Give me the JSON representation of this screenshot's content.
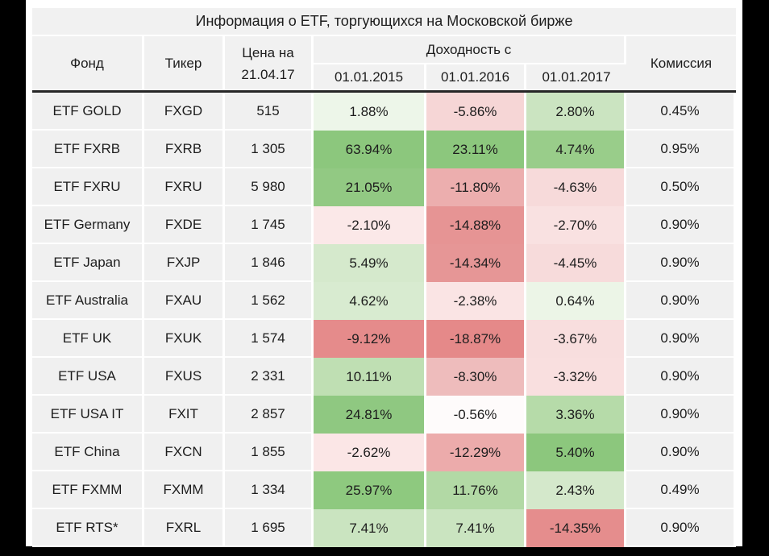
{
  "colors": {
    "frame": "#000000",
    "cell_gray": "#f0f0f0",
    "header_divider": "#262626",
    "text": "#1d1d1d",
    "max_green": "#8cc77d",
    "max_red": "#e58989",
    "neutral": "#ffffff"
  },
  "chart_data": {
    "type": "table",
    "title": "Информация о ETF, торгующихся на Московской бирже",
    "header": {
      "fund": "Фонд",
      "ticker": "Тикер",
      "price_line1": "Цена на",
      "price_line2": "21.04.17",
      "returns_group": "Доходность с",
      "date_2015": "01.01.2015",
      "date_2016": "01.01.2016",
      "date_2017": "01.01.2017",
      "commission": "Комиссия"
    },
    "rows": [
      {
        "fund": "ETF GOLD",
        "ticker": "FXGD",
        "price": "515",
        "returns": [
          "1.88%",
          "-5.86%",
          "2.80%"
        ],
        "returns_bg": [
          "#edf6e9",
          "#f6d6d6",
          "#cbe4c1"
        ],
        "commission": "0.45%"
      },
      {
        "fund": "ETF FXRB",
        "ticker": "FXRB",
        "price": "1 305",
        "returns": [
          "63.94%",
          "23.11%",
          "4.74%"
        ],
        "returns_bg": [
          "#8cc77d",
          "#8cc77d",
          "#99cd8a"
        ],
        "commission": "0.95%"
      },
      {
        "fund": "ETF FXRU",
        "ticker": "FXRU",
        "price": "5 980",
        "returns": [
          "21.05%",
          "-11.80%",
          "-4.63%"
        ],
        "returns_bg": [
          "#92c983",
          "#ecaeae",
          "#f7dada"
        ],
        "commission": "0.50%"
      },
      {
        "fund": "ETF Germany",
        "ticker": "FXDE",
        "price": "1 745",
        "returns": [
          "-2.10%",
          "-14.88%",
          "-2.70%"
        ],
        "returns_bg": [
          "#fbe8e8",
          "#e69494",
          "#f9e1e1"
        ],
        "commission": "0.90%"
      },
      {
        "fund": "ETF Japan",
        "ticker": "FXJP",
        "price": "1 846",
        "returns": [
          "5.49%",
          "-14.34%",
          "-4.45%"
        ],
        "returns_bg": [
          "#d5e9cc",
          "#e69696",
          "#f7dbdb"
        ],
        "commission": "0.90%"
      },
      {
        "fund": "ETF Australia",
        "ticker": "FXAU",
        "price": "1 562",
        "returns": [
          "4.62%",
          "-2.38%",
          "0.64%"
        ],
        "returns_bg": [
          "#d8ebd0",
          "#fae4e4",
          "#ecf5e7"
        ],
        "commission": "0.90%"
      },
      {
        "fund": "ETF UK",
        "ticker": "FXUK",
        "price": "1 574",
        "returns": [
          "-9.12%",
          "-18.87%",
          "-3.67%"
        ],
        "returns_bg": [
          "#e58b8b",
          "#e58989",
          "#f8dede"
        ],
        "commission": "0.90%"
      },
      {
        "fund": "ETF USA",
        "ticker": "FXUS",
        "price": "2 331",
        "returns": [
          "10.11%",
          "-8.30%",
          "-3.32%"
        ],
        "returns_bg": [
          "#bfdfb3",
          "#eebcbc",
          "#f9dfdf"
        ],
        "commission": "0.90%"
      },
      {
        "fund": "ETF USA IT",
        "ticker": "FXIT",
        "price": "2 857",
        "returns": [
          "24.81%",
          "-0.56%",
          "3.36%"
        ],
        "returns_bg": [
          "#8fc881",
          "#fefbfb",
          "#b6dba9"
        ],
        "commission": "0.90%"
      },
      {
        "fund": "ETF China",
        "ticker": "FXCN",
        "price": "1 855",
        "returns": [
          "-2.62%",
          "-12.29%",
          "5.40%"
        ],
        "returns_bg": [
          "#fbe6e6",
          "#ecabab",
          "#8cc77d"
        ],
        "commission": "0.90%"
      },
      {
        "fund": "ETF FXMM",
        "ticker": "FXMM",
        "price": "1 334",
        "returns": [
          "25.97%",
          "11.76%",
          "2.43%"
        ],
        "returns_bg": [
          "#8ec97f",
          "#b2d9a5",
          "#d4e8cb"
        ],
        "commission": "0.49%"
      },
      {
        "fund": "ETF RTS*",
        "ticker": "FXRL",
        "price": "1 695",
        "returns": [
          "7.41%",
          "7.41%",
          "-14.35%"
        ],
        "returns_bg": [
          "#cae4c0",
          "#cae4c0",
          "#e58d8d"
        ],
        "commission": "0.90%"
      }
    ]
  }
}
